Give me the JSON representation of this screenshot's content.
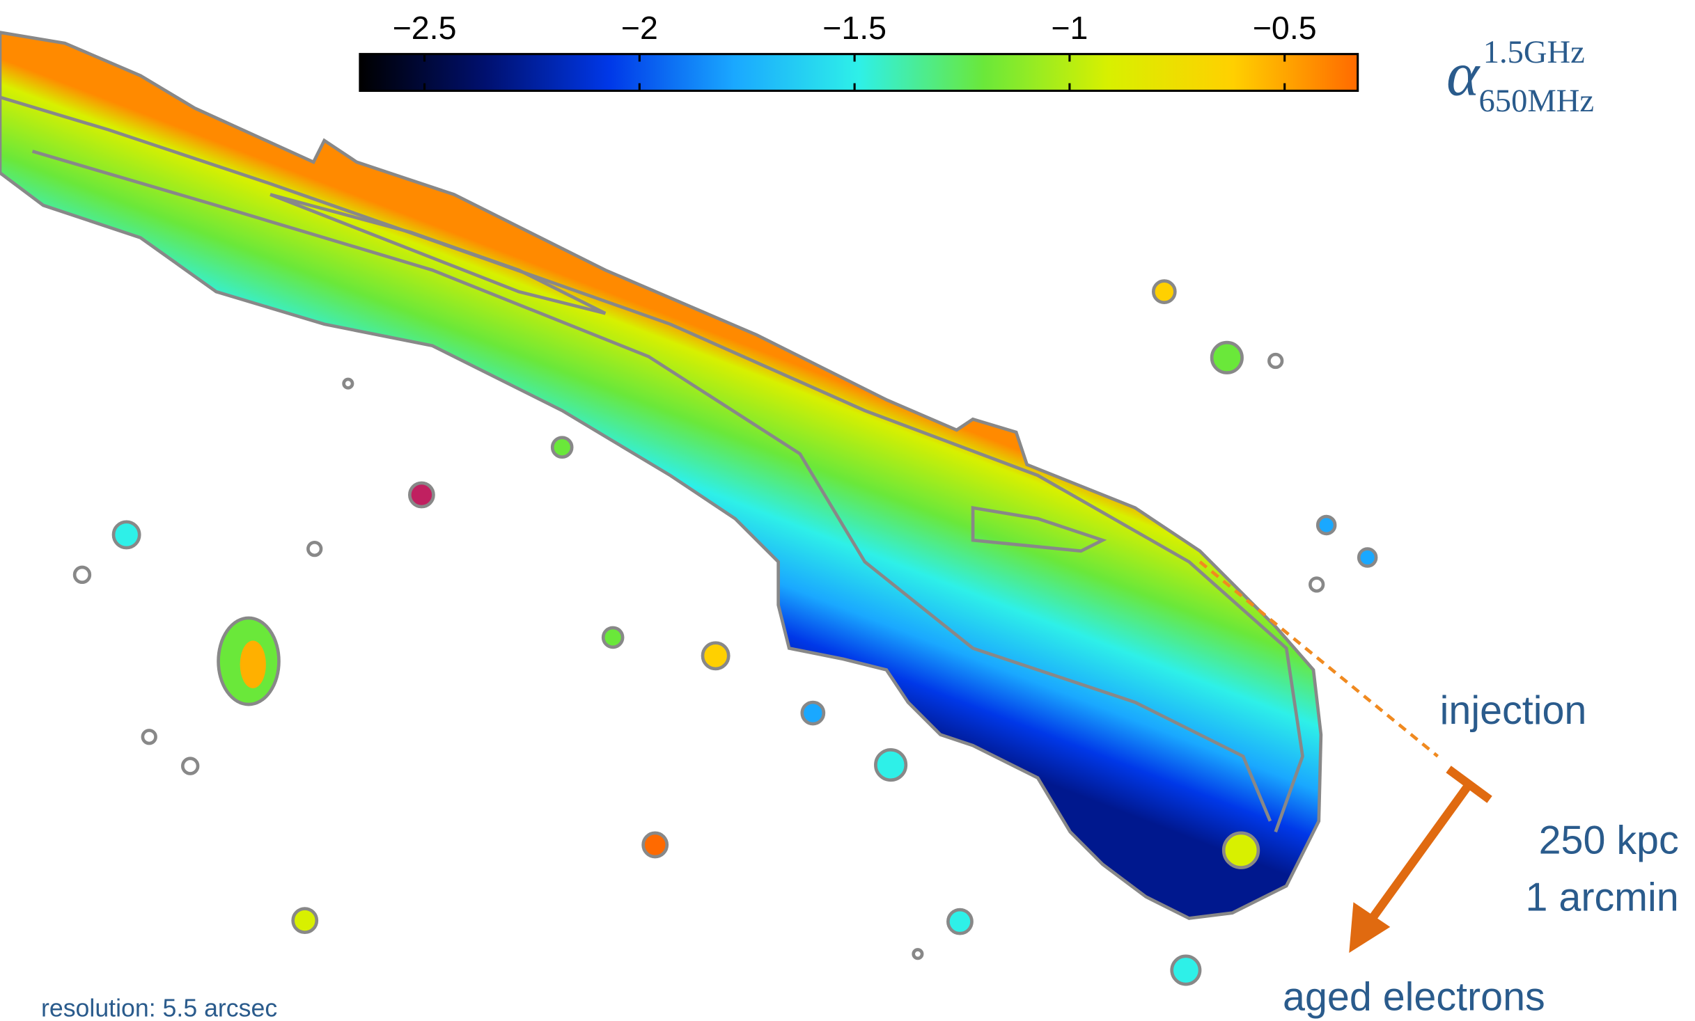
{
  "colorbar": {
    "lim": [
      -2.65,
      -0.33
    ],
    "ticks": [
      {
        "value": -2.5,
        "label": "−2.5"
      },
      {
        "value": -2,
        "label": "−2"
      },
      {
        "value": -1.5,
        "label": "−1.5"
      },
      {
        "value": -1,
        "label": "−1"
      },
      {
        "value": -0.5,
        "label": "−0.5"
      }
    ],
    "colormap": [
      "#000000",
      "#00106e",
      "#0038e8",
      "#1aa8ff",
      "#2ef0e8",
      "#6ae83a",
      "#d8f000",
      "#ffd000",
      "#ff6a00"
    ]
  },
  "symbol": "α",
  "superscript": "1.5GHz",
  "subscript": "650MHz",
  "annotations": {
    "injection": "injection",
    "scale_kpc": "250 kpc",
    "scale_arcmin": "1 arcmin",
    "aged": "aged electrons"
  },
  "resolution": "resolution: 5.5 arcsec"
}
